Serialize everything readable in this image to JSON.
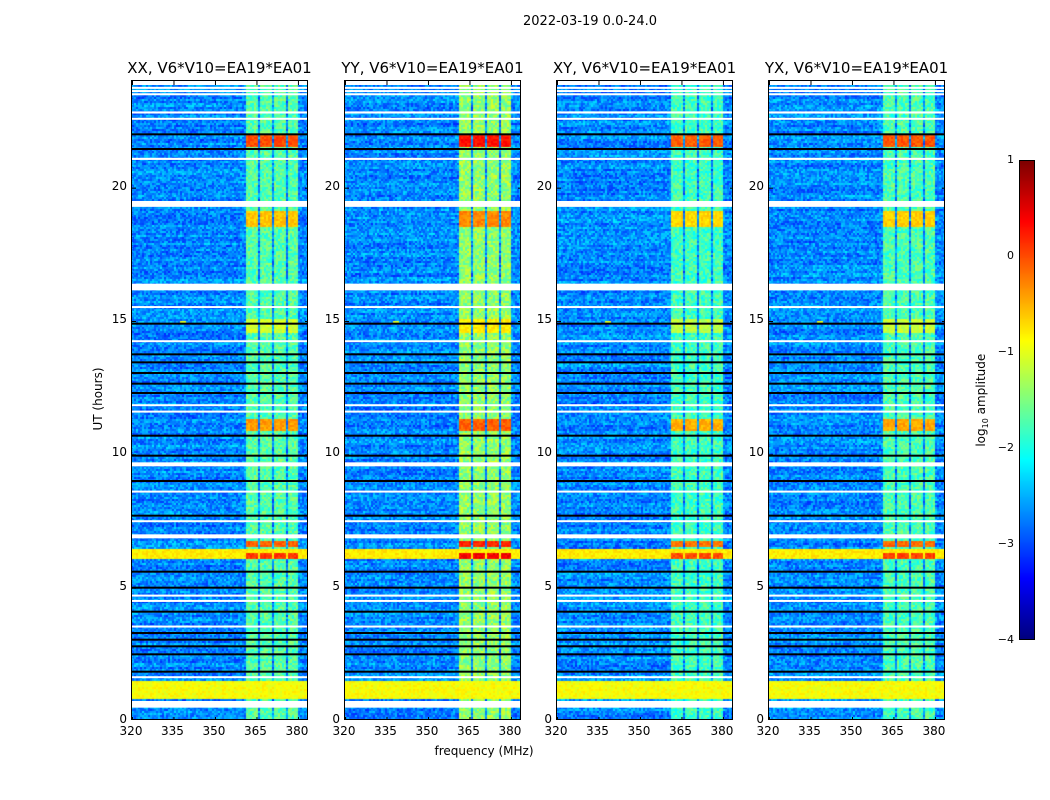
{
  "chart_data": {
    "type": "heatmap",
    "title": "2022-03-19 0.0-24.0",
    "xlabel": "frequency (MHz)",
    "ylabel": "UT (hours)",
    "xlim": [
      320,
      384
    ],
    "ylim": [
      0,
      24
    ],
    "xticks": [
      "320",
      "335",
      "350",
      "365",
      "380"
    ],
    "xtick_values": [
      320,
      335,
      350,
      365,
      380
    ],
    "yticks": [
      "0",
      "5",
      "10",
      "15",
      "20"
    ],
    "ytick_values": [
      0,
      5,
      10,
      15,
      20
    ],
    "colorbar": {
      "label_main": "log",
      "label_sub": "10",
      "label_tail": " amplitude",
      "range": [
        -4,
        1
      ],
      "ticks": [
        "1",
        "0",
        "−1",
        "−2",
        "−3",
        "−4"
      ],
      "tick_values": [
        1,
        0,
        -1,
        -2,
        -3,
        -4
      ],
      "colormap": "jet"
    },
    "background_log_amplitude": -2.7,
    "rfi_channels_mhz": [
      [
        361,
        365
      ],
      [
        366,
        370
      ],
      [
        371,
        375
      ],
      [
        376,
        380
      ]
    ],
    "rfi_log_amplitude": -1.7,
    "flagged_hours": [
      [
        23.85,
        24
      ],
      [
        23.72,
        23.78
      ],
      [
        23.6,
        23.66
      ],
      [
        23.48,
        23.54
      ],
      [
        22.78,
        22.86
      ],
      [
        22.56,
        22.62
      ],
      [
        21.04,
        21.12
      ],
      [
        19.28,
        19.5
      ],
      [
        16.15,
        16.4
      ],
      [
        15.5,
        15.56
      ],
      [
        14.22,
        14.28
      ],
      [
        11.82,
        11.88
      ],
      [
        11.58,
        11.64
      ],
      [
        9.55,
        9.7
      ],
      [
        8.58,
        8.64
      ],
      [
        7.47,
        7.53
      ],
      [
        6.85,
        7.0
      ],
      [
        4.68,
        4.74
      ],
      [
        4.48,
        4.54
      ],
      [
        3.52,
        3.58
      ],
      [
        1.62,
        1.68
      ],
      [
        0.5,
        0.75
      ]
    ],
    "dropout_hours": [
      22.0,
      21.45,
      14.9,
      13.75,
      13.45,
      13.05,
      12.65,
      12.3,
      10.7,
      9.95,
      9.0,
      7.7,
      5.6,
      5.0,
      4.1,
      3.3,
      3.05,
      2.8,
      2.5,
      1.85
    ],
    "events": [
      {
        "t0": 21.6,
        "t1": 22.0,
        "band": "rfi",
        "log_amplitude": 0.0
      },
      {
        "t0": 18.6,
        "t1": 19.2,
        "band": "rfi",
        "log_amplitude": -0.6
      },
      {
        "t0": 14.6,
        "t1": 15.1,
        "band": "rfi",
        "log_amplitude": -1.1
      },
      {
        "t0": 10.95,
        "t1": 11.35,
        "band": "rfi",
        "log_amplitude": -0.4
      },
      {
        "t0": 6.6,
        "t1": 6.8,
        "band": "rfi",
        "log_amplitude": -0.1
      },
      {
        "t0": 6.1,
        "t1": 6.45,
        "band": "all",
        "log_amplitude": -0.8
      },
      {
        "t0": 6.1,
        "t1": 6.35,
        "band": "rfi",
        "log_amplitude": 0.1
      },
      {
        "t0": 0.85,
        "t1": 1.55,
        "band": "all",
        "log_amplitude": -0.9
      },
      {
        "t0": 14.95,
        "t1": 15.05,
        "band": "spot",
        "freq": 338,
        "log_amplitude": -1.0
      }
    ],
    "panels": [
      {
        "title": "XX, V6*V10=EA19*EA01",
        "rfi_offset": 0.0
      },
      {
        "title": "YY, V6*V10=EA19*EA01",
        "rfi_offset": 0.3
      },
      {
        "title": "XY, V6*V10=EA19*EA01",
        "rfi_offset": -0.1
      },
      {
        "title": "YX, V6*V10=EA19*EA01",
        "rfi_offset": -0.05
      }
    ]
  }
}
